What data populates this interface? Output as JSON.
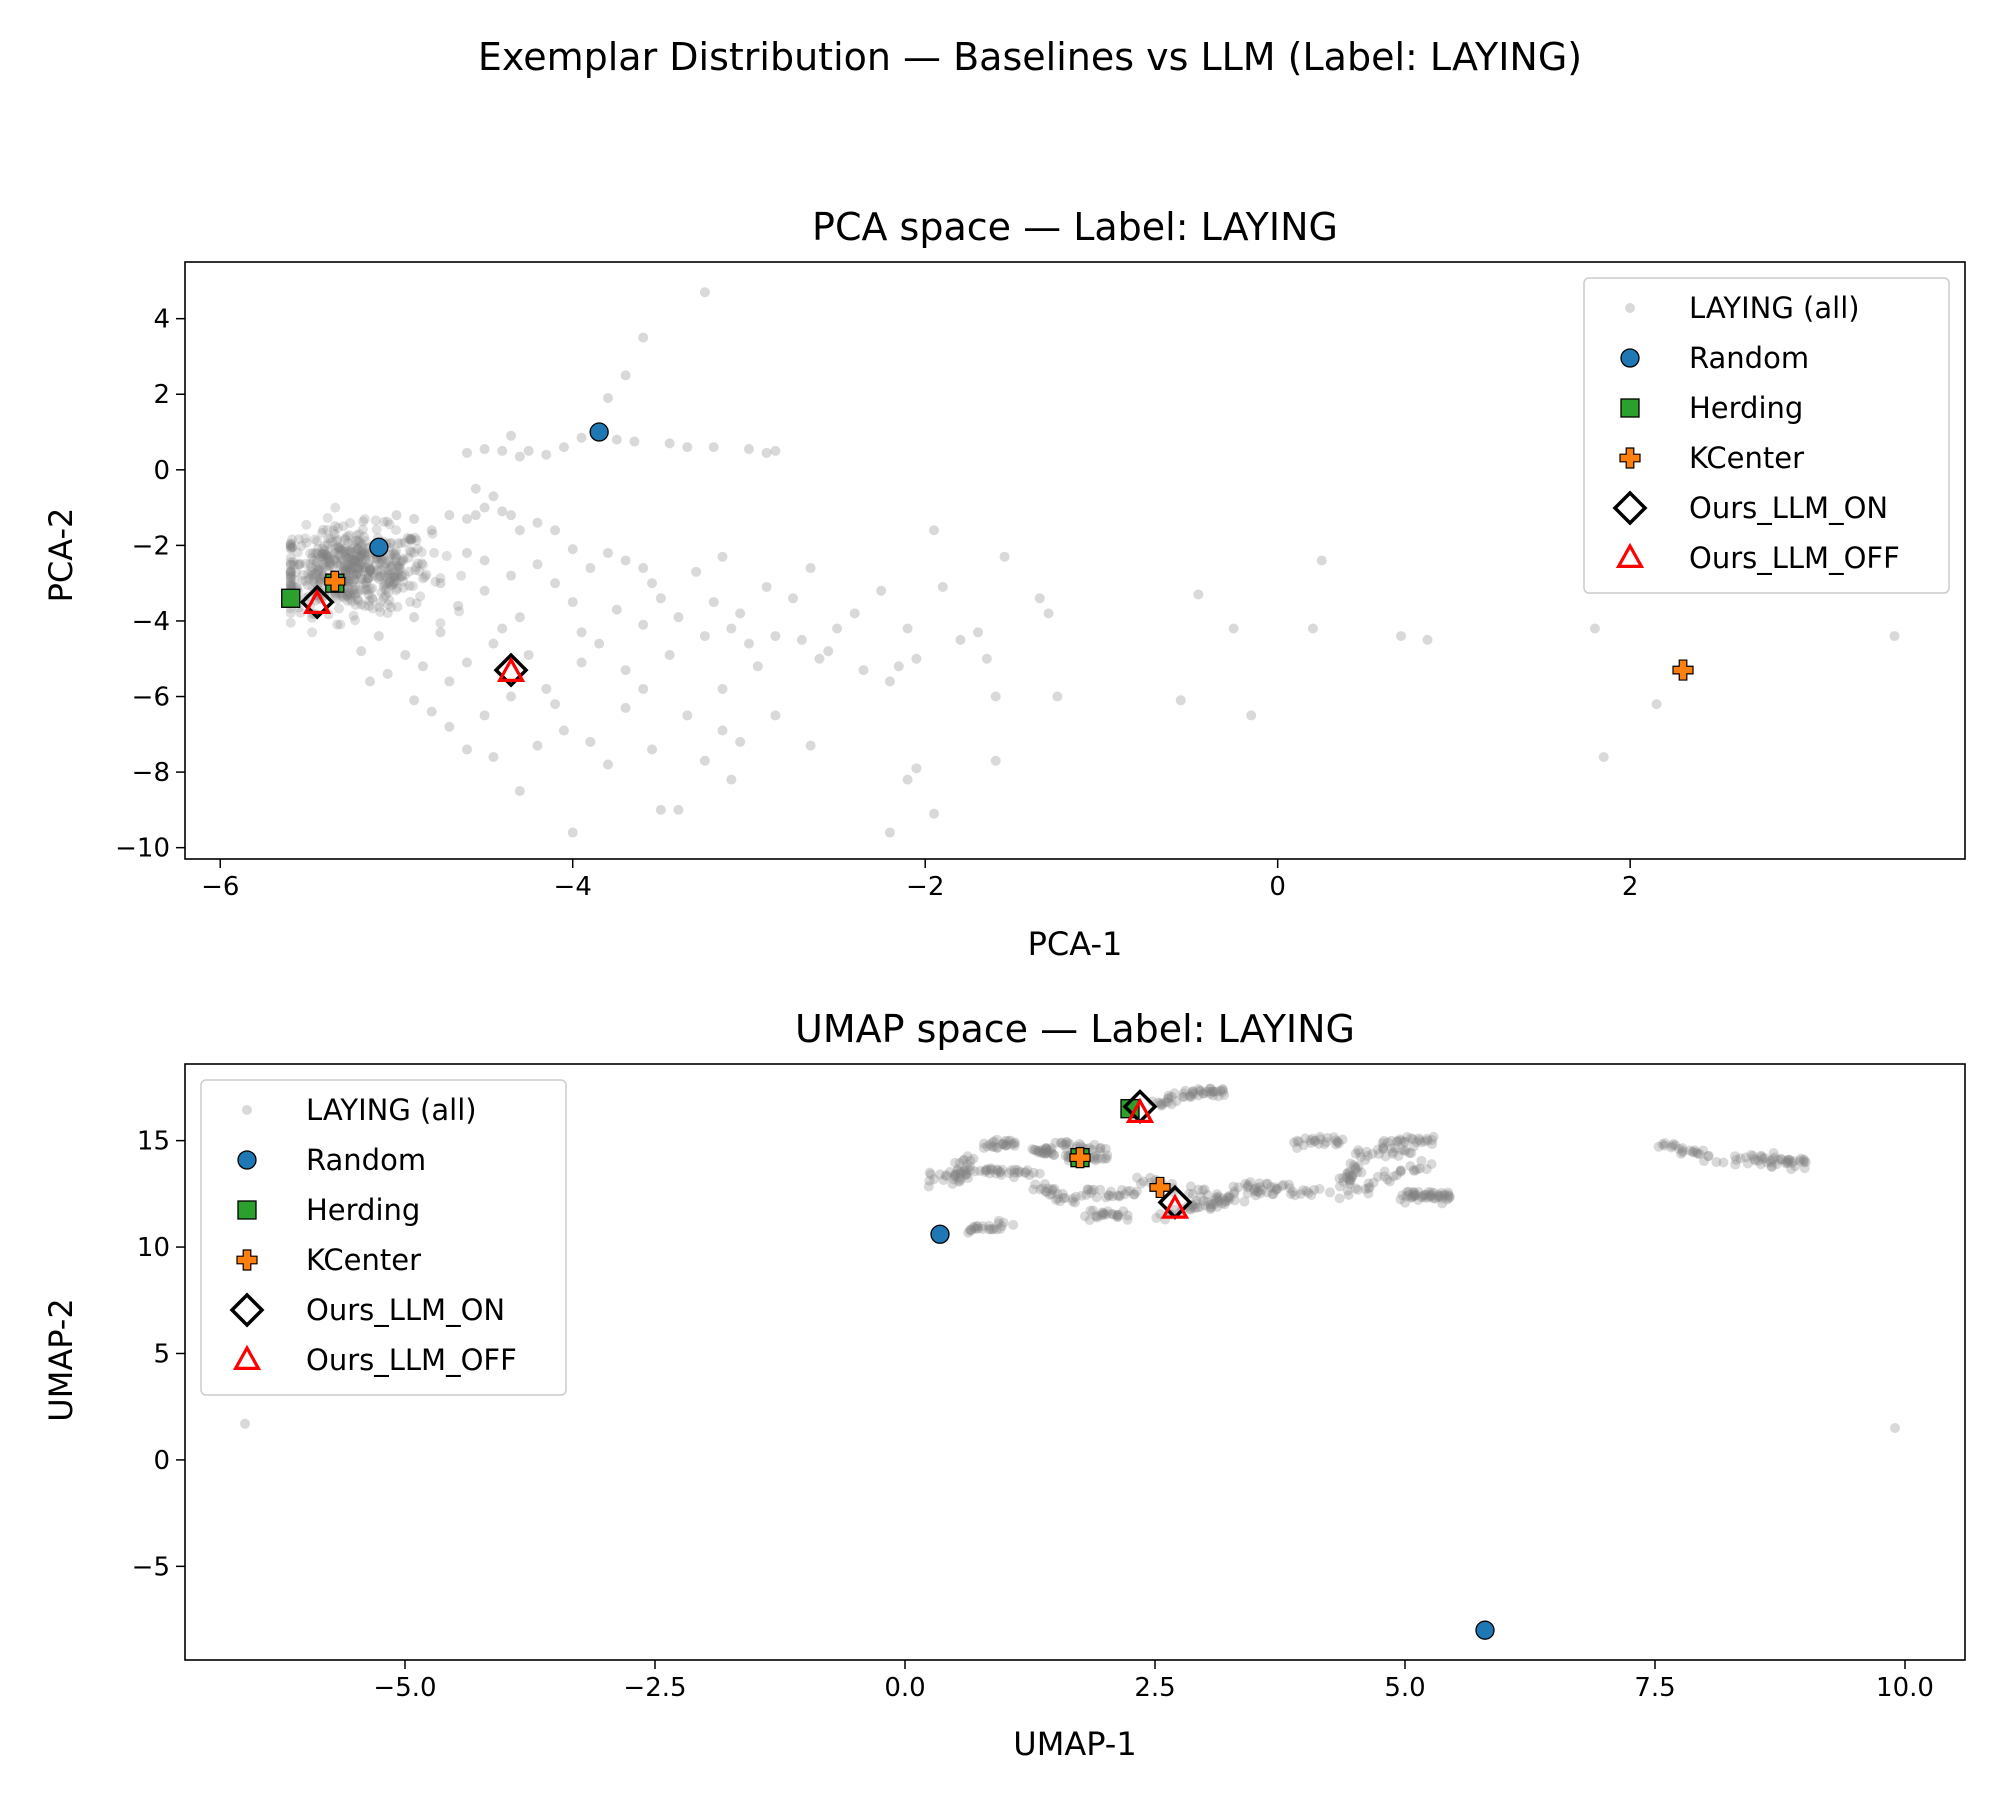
{
  "suptitle": "Exemplar Distribution — Baselines vs LLM (Label: LAYING)",
  "colors": {
    "background_points": "#808080",
    "random": "#1f77b4",
    "herding": "#2ca02c",
    "kcenter": "#ff7f0e",
    "ours_llm_on": "#000000",
    "ours_llm_off": "#ff0000"
  },
  "chart_data": [
    {
      "type": "scatter",
      "title": "PCA space — Label: LAYING",
      "xlabel": "PCA-1",
      "ylabel": "PCA-2",
      "xlim": [
        -6.2,
        3.9
      ],
      "ylim": [
        -10.3,
        5.5
      ],
      "xticks": [
        -6,
        -4,
        -2,
        0,
        2
      ],
      "xtick_labels": [
        "−6",
        "−4",
        "−2",
        "0",
        "2"
      ],
      "yticks": [
        -10,
        -8,
        -6,
        -4,
        -2,
        0,
        2,
        4
      ],
      "ytick_labels": [
        "−10",
        "−8",
        "−6",
        "−4",
        "−2",
        "0",
        "2",
        "4"
      ],
      "legend": "upper right",
      "grid": false,
      "background": {
        "name": "LAYING (all)",
        "dense_cluster": {
          "x_range": [
            -5.6,
            -4.6
          ],
          "y_range": [
            -4.3,
            -1.0
          ],
          "approx_count": 520
        },
        "points": [
          [
            -3.25,
            4.7
          ],
          [
            -3.6,
            3.5
          ],
          [
            -3.7,
            2.5
          ],
          [
            -3.8,
            1.9
          ],
          [
            -3.75,
            0.8
          ],
          [
            -3.95,
            0.85
          ],
          [
            -4.05,
            0.6
          ],
          [
            -4.15,
            0.4
          ],
          [
            -4.25,
            0.5
          ],
          [
            -4.35,
            0.9
          ],
          [
            -4.4,
            0.5
          ],
          [
            -4.5,
            0.55
          ],
          [
            -3.45,
            0.7
          ],
          [
            -3.35,
            0.6
          ],
          [
            -3.2,
            0.6
          ],
          [
            -3.0,
            0.55
          ],
          [
            -2.85,
            0.5
          ],
          [
            -2.9,
            0.45
          ],
          [
            -3.65,
            0.75
          ],
          [
            -4.6,
            0.45
          ],
          [
            -4.3,
            0.35
          ],
          [
            -4.55,
            -0.5
          ],
          [
            -4.45,
            -0.7
          ],
          [
            -4.5,
            -1.0
          ],
          [
            -4.35,
            -1.2
          ],
          [
            -4.2,
            -1.4
          ],
          [
            -4.1,
            -1.6
          ],
          [
            -4.0,
            -2.1
          ],
          [
            -3.9,
            -2.6
          ],
          [
            -3.8,
            -2.2
          ],
          [
            -3.7,
            -2.4
          ],
          [
            -3.6,
            -2.6
          ],
          [
            -3.55,
            -3.0
          ],
          [
            -3.5,
            -3.4
          ],
          [
            -3.4,
            -3.9
          ],
          [
            -3.3,
            -2.7
          ],
          [
            -3.2,
            -3.5
          ],
          [
            -3.15,
            -2.3
          ],
          [
            -3.1,
            -4.2
          ],
          [
            -3.0,
            -4.6
          ],
          [
            -2.9,
            -3.1
          ],
          [
            -2.85,
            -4.4
          ],
          [
            -2.75,
            -3.4
          ],
          [
            -2.7,
            -4.5
          ],
          [
            -2.65,
            -2.6
          ],
          [
            -2.55,
            -4.8
          ],
          [
            -2.5,
            -4.2
          ],
          [
            -2.4,
            -3.8
          ],
          [
            -2.25,
            -3.2
          ],
          [
            -2.2,
            -5.6
          ],
          [
            -2.1,
            -4.2
          ],
          [
            -2.05,
            -5.0
          ],
          [
            -1.95,
            -1.6
          ],
          [
            -1.9,
            -3.1
          ],
          [
            -1.8,
            -4.5
          ],
          [
            -1.7,
            -4.3
          ],
          [
            -1.65,
            -5.0
          ],
          [
            -1.6,
            -6.0
          ],
          [
            -1.55,
            -2.3
          ],
          [
            -1.35,
            -3.4
          ],
          [
            -1.3,
            -3.8
          ],
          [
            -1.25,
            -6.0
          ],
          [
            -0.55,
            -6.1
          ],
          [
            -0.45,
            -3.3
          ],
          [
            -0.25,
            -4.2
          ],
          [
            -0.15,
            -6.5
          ],
          [
            0.2,
            -4.2
          ],
          [
            0.25,
            -2.4
          ],
          [
            0.7,
            -4.4
          ],
          [
            0.85,
            -4.5
          ],
          [
            1.8,
            -4.2
          ],
          [
            1.85,
            -7.6
          ],
          [
            2.15,
            -6.2
          ],
          [
            3.5,
            -4.4
          ],
          [
            -2.2,
            -9.6
          ],
          [
            -2.1,
            -8.2
          ],
          [
            -2.05,
            -7.9
          ],
          [
            -1.95,
            -9.1
          ],
          [
            -1.6,
            -7.7
          ],
          [
            -2.65,
            -7.3
          ],
          [
            -2.85,
            -6.5
          ],
          [
            -3.1,
            -8.2
          ],
          [
            -3.25,
            -7.7
          ],
          [
            -3.4,
            -9.0
          ],
          [
            -3.5,
            -9.0
          ],
          [
            -3.8,
            -7.8
          ],
          [
            -3.9,
            -7.2
          ],
          [
            -4.0,
            -9.6
          ],
          [
            -4.05,
            -6.9
          ],
          [
            -4.2,
            -7.3
          ],
          [
            -4.3,
            -8.5
          ],
          [
            -4.45,
            -7.6
          ],
          [
            -4.5,
            -6.5
          ],
          [
            -4.6,
            -7.4
          ],
          [
            -4.7,
            -6.8
          ],
          [
            -4.8,
            -6.4
          ],
          [
            -3.35,
            -6.5
          ],
          [
            -3.15,
            -6.9
          ],
          [
            -3.05,
            -7.2
          ],
          [
            -3.55,
            -7.4
          ],
          [
            -3.7,
            -6.3
          ],
          [
            -3.6,
            -5.8
          ],
          [
            -3.95,
            -5.1
          ],
          [
            -3.85,
            -4.6
          ],
          [
            -4.15,
            -5.8
          ],
          [
            -4.25,
            -4.9
          ],
          [
            -4.45,
            -4.6
          ],
          [
            -4.6,
            -5.1
          ],
          [
            -4.7,
            -5.6
          ],
          [
            -4.85,
            -5.2
          ],
          [
            -4.95,
            -4.9
          ],
          [
            -5.05,
            -5.4
          ],
          [
            -5.15,
            -5.6
          ],
          [
            -5.2,
            -4.8
          ],
          [
            -4.75,
            -4.3
          ],
          [
            -4.65,
            -3.6
          ],
          [
            -4.5,
            -3.2
          ],
          [
            -4.35,
            -2.8
          ],
          [
            -4.2,
            -2.5
          ],
          [
            -4.1,
            -3.0
          ],
          [
            -4.0,
            -3.5
          ],
          [
            -3.75,
            -3.7
          ],
          [
            -3.95,
            -4.3
          ],
          [
            -4.3,
            -3.9
          ],
          [
            -4.4,
            -4.2
          ],
          [
            -4.5,
            -2.4
          ],
          [
            -4.6,
            -2.2
          ],
          [
            -4.8,
            -1.6
          ],
          [
            -4.9,
            -1.3
          ],
          [
            -5.0,
            -1.2
          ],
          [
            -4.7,
            -1.2
          ],
          [
            -4.6,
            -1.3
          ],
          [
            -4.55,
            -1.2
          ],
          [
            -4.4,
            -1.1
          ],
          [
            -4.3,
            -1.6
          ],
          [
            -3.6,
            -4.1
          ],
          [
            -3.45,
            -4.9
          ],
          [
            -2.95,
            -5.2
          ],
          [
            -3.15,
            -5.8
          ],
          [
            -3.25,
            -4.4
          ],
          [
            -3.05,
            -3.8
          ],
          [
            -2.6,
            -5.0
          ],
          [
            -2.35,
            -5.3
          ],
          [
            -2.15,
            -5.2
          ],
          [
            -3.7,
            -5.3
          ],
          [
            -4.1,
            -6.2
          ],
          [
            -4.35,
            -6.0
          ],
          [
            -4.9,
            -6.1
          ],
          [
            -5.1,
            -4.4
          ],
          [
            -4.9,
            -3.9
          ],
          [
            -4.75,
            -3.0
          ]
        ]
      },
      "series": [
        {
          "name": "Random",
          "marker": "circle",
          "points": [
            [
              -3.85,
              1.0
            ],
            [
              -5.1,
              -2.05
            ]
          ]
        },
        {
          "name": "Herding",
          "marker": "square",
          "points": [
            [
              -5.6,
              -3.4
            ],
            [
              -5.35,
              -3.0
            ]
          ]
        },
        {
          "name": "KCenter",
          "marker": "plus",
          "points": [
            [
              -5.35,
              -2.95
            ],
            [
              2.3,
              -5.3
            ]
          ]
        },
        {
          "name": "Ours_LLM_ON",
          "marker": "diamond",
          "points": [
            [
              -5.45,
              -3.5
            ],
            [
              -4.35,
              -5.3
            ]
          ]
        },
        {
          "name": "Ours_LLM_OFF",
          "marker": "triangle",
          "points": [
            [
              -5.45,
              -3.55
            ],
            [
              -4.35,
              -5.35
            ]
          ]
        }
      ]
    },
    {
      "type": "scatter",
      "title": "UMAP space — Label: LAYING",
      "xlabel": "UMAP-1",
      "ylabel": "UMAP-2",
      "xlim": [
        -7.2,
        10.6
      ],
      "ylim": [
        -9.4,
        18.6
      ],
      "xticks": [
        -5.0,
        -2.5,
        0.0,
        2.5,
        5.0,
        7.5,
        10.0
      ],
      "xtick_labels": [
        "−5.0",
        "−2.5",
        "0.0",
        "2.5",
        "5.0",
        "7.5",
        "10.0"
      ],
      "yticks": [
        -5,
        0,
        5,
        10,
        15
      ],
      "ytick_labels": [
        "−5",
        "0",
        "5",
        "10",
        "15"
      ],
      "legend": "upper left",
      "grid": false,
      "background": {
        "name": "LAYING (all)",
        "points": [
          [
            -6.6,
            1.7
          ],
          [
            9.9,
            1.5
          ]
        ],
        "segments": [
          [
            0.2,
            13.3,
            0.9,
            13.6
          ],
          [
            0.5,
            13.0,
            0.6,
            14.2
          ],
          [
            0.8,
            14.8,
            1.1,
            14.8
          ],
          [
            0.8,
            13.5,
            1.3,
            13.5
          ],
          [
            1.3,
            14.5,
            1.5,
            14.5
          ],
          [
            1.5,
            14.9,
            2.0,
            14.6
          ],
          [
            1.6,
            14.3,
            2.0,
            14.1
          ],
          [
            1.3,
            12.9,
            1.7,
            12.2
          ],
          [
            1.8,
            12.6,
            2.3,
            12.5
          ],
          [
            0.6,
            10.8,
            1.0,
            11.0
          ],
          [
            1.8,
            11.5,
            2.2,
            11.5
          ],
          [
            2.3,
            13.2,
            3.2,
            12.3
          ],
          [
            2.5,
            11.4,
            3.5,
            12.5
          ],
          [
            2.8,
            11.8,
            3.3,
            12.3
          ],
          [
            2.5,
            16.7,
            2.9,
            17.2
          ],
          [
            2.9,
            17.2,
            3.2,
            17.3
          ],
          [
            3.5,
            12.6,
            4.5,
            12.6
          ],
          [
            3.9,
            14.9,
            4.4,
            15.1
          ],
          [
            4.4,
            13.0,
            4.5,
            13.8
          ],
          [
            4.8,
            14.9,
            5.3,
            15.1
          ],
          [
            4.6,
            12.8,
            5.2,
            13.9
          ],
          [
            5.0,
            12.4,
            5.5,
            12.4
          ],
          [
            4.5,
            14.4,
            5.1,
            14.5
          ],
          [
            7.6,
            14.8,
            8.0,
            14.3
          ],
          [
            8.2,
            14.2,
            9.0,
            13.8
          ],
          [
            8.5,
            14.2,
            9.0,
            14.0
          ],
          [
            5.0,
            12.5,
            5.4,
            12.3
          ],
          [
            3.3,
            12.9,
            3.8,
            12.8
          ]
        ]
      },
      "series": [
        {
          "name": "Random",
          "marker": "circle",
          "points": [
            [
              0.35,
              10.6
            ],
            [
              5.8,
              -8.0
            ]
          ]
        },
        {
          "name": "Herding",
          "marker": "square",
          "points": [
            [
              2.25,
              16.5
            ],
            [
              1.75,
              14.2
            ]
          ]
        },
        {
          "name": "KCenter",
          "marker": "plus",
          "points": [
            [
              1.75,
              14.2
            ],
            [
              2.55,
              12.8
            ]
          ]
        },
        {
          "name": "Ours_LLM_ON",
          "marker": "diamond",
          "points": [
            [
              2.35,
              16.6
            ],
            [
              2.7,
              12.1
            ]
          ]
        },
        {
          "name": "Ours_LLM_OFF",
          "marker": "triangle",
          "points": [
            [
              2.35,
              16.3
            ],
            [
              2.7,
              11.8
            ]
          ]
        }
      ]
    }
  ]
}
